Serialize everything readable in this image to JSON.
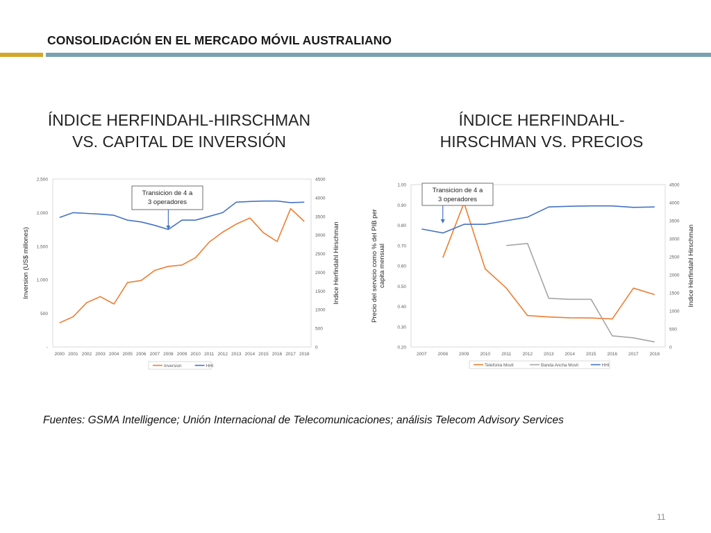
{
  "header": {
    "title": "CONSOLIDACIÓN EN EL MERCADO MÓVIL AUSTRALIANO",
    "accent_color": "#d4a62a",
    "rule_color": "#7aa1b1"
  },
  "chart_titles": {
    "left": [
      "ÍNDICE HERFINDAHL-HIRSCHMAN",
      "VS. CAPITAL DE INVERSIÓN"
    ],
    "right": [
      "ÍNDICE HERFINDAHL-",
      "HIRSCHMAN VS. PRECIOS"
    ]
  },
  "chart_data": [
    {
      "type": "line",
      "categories": [
        "2000",
        "2001",
        "2002",
        "2003",
        "2004",
        "2005",
        "2006",
        "2007",
        "2008",
        "2009",
        "2010",
        "2011",
        "2012",
        "2013",
        "2014",
        "2015",
        "2016",
        "2017",
        "2018"
      ],
      "ylabel": "Inversion (US$ millones)",
      "y2label": "Indice Herfindahl Hirschman",
      "ylim": [
        0,
        2500
      ],
      "y2lim": [
        0,
        4500
      ],
      "yticks": [
        0,
        500,
        1000,
        1500,
        2000,
        2500
      ],
      "ytick_labels": [
        "-",
        "500",
        "1,000",
        "1,500",
        "2,000",
        "2,500"
      ],
      "y2ticks": [
        0,
        500,
        1000,
        1500,
        2000,
        2500,
        3000,
        3500,
        4000,
        4500
      ],
      "series": [
        {
          "name": "Inversion",
          "axis": "left",
          "color": "#ed7d31",
          "values": [
            360,
            450,
            660,
            750,
            640,
            960,
            990,
            1140,
            1200,
            1220,
            1330,
            1560,
            1710,
            1830,
            1920,
            1700,
            1570,
            2060,
            1870
          ]
        },
        {
          "name": "HHI",
          "axis": "right",
          "color": "#4472c4",
          "values": [
            3470,
            3600,
            3580,
            3560,
            3530,
            3400,
            3350,
            3260,
            3150,
            3400,
            3400,
            3500,
            3600,
            3880,
            3900,
            3910,
            3910,
            3870,
            3880
          ]
        }
      ],
      "annotation": {
        "text": [
          "Transicion de 4 a",
          "3 operadores"
        ],
        "category": "2008"
      },
      "legend": "bottom",
      "grid": false
    },
    {
      "type": "line",
      "categories": [
        "2007",
        "2008",
        "2009",
        "2010",
        "2011",
        "2012",
        "2013",
        "2014",
        "2015",
        "2016",
        "2017",
        "2018"
      ],
      "ylabel": "Precio del servicio como % del PIB per capita mensual",
      "y2label": "Indice Herfindahl Hirschman",
      "ylim": [
        0.2,
        1.0
      ],
      "y2lim": [
        0,
        4500
      ],
      "yticks": [
        0.2,
        0.3,
        0.4,
        0.5,
        0.6,
        0.7,
        0.8,
        0.9,
        1.0
      ],
      "ytick_labels": [
        "0.20",
        "0.30",
        "0.40",
        "0.50",
        "0.60",
        "0.70",
        "0.80",
        "0.90",
        "1.00"
      ],
      "y2ticks": [
        0,
        500,
        1000,
        1500,
        2000,
        2500,
        3000,
        3500,
        4000,
        4500
      ],
      "series": [
        {
          "name": "Telefonia Movil",
          "axis": "left",
          "color": "#ed7d31",
          "values": [
            null,
            0.64,
            0.91,
            0.585,
            0.49,
            0.355,
            0.348,
            0.344,
            0.343,
            0.338,
            0.49,
            0.458
          ]
        },
        {
          "name": "Banda Ancha Movil",
          "axis": "left",
          "color": "#a5a5a5",
          "values": [
            null,
            null,
            null,
            null,
            0.7,
            0.71,
            0.44,
            0.435,
            0.435,
            0.255,
            0.245,
            0.225
          ]
        },
        {
          "name": "HHI",
          "axis": "right",
          "color": "#4472c4",
          "values": [
            3270,
            3160,
            3400,
            3400,
            3500,
            3600,
            3880,
            3900,
            3910,
            3910,
            3870,
            3880
          ]
        }
      ],
      "annotation": {
        "text": [
          "Transicion de 4 a",
          "3 operadores"
        ],
        "category": "2008"
      },
      "legend": "bottom",
      "grid": false
    }
  ],
  "sources": "Fuentes: GSMA Intelligence; Unión Internacional de Telecomunicaciones; análisis Telecom Advisory Services",
  "page_number": "11"
}
